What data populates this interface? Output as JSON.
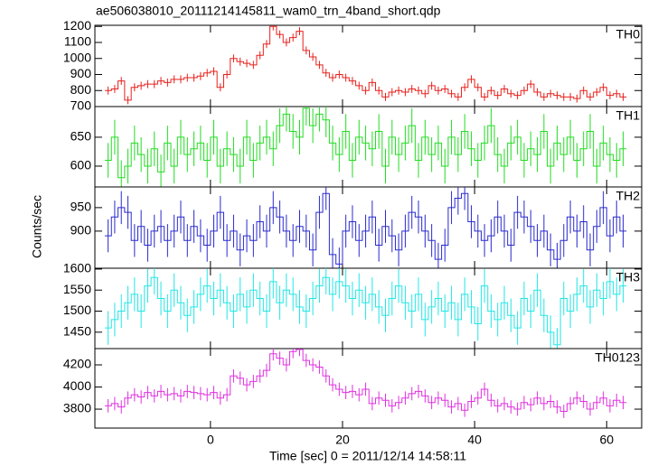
{
  "chart_data": {
    "type": "step",
    "title": "ae506038010_20111214145811_wam0_trn_4band_short.qdp",
    "xlabel": "Time [sec] 0 = 2011/12/14 14:58:11",
    "ylabel": "Counts/sec",
    "x": [
      -15.5,
      -14.5,
      -13.5,
      -12.5,
      -11.5,
      -10.5,
      -9.5,
      -8.5,
      -7.5,
      -6.5,
      -5.5,
      -4.5,
      -3.5,
      -2.5,
      -1.5,
      -0.5,
      0.5,
      1.5,
      2.5,
      3.5,
      4.5,
      5.5,
      6.5,
      7.5,
      8.5,
      9.5,
      10.5,
      11.5,
      12.5,
      13.5,
      14.5,
      15.5,
      16.5,
      17.5,
      18.5,
      19.5,
      20.5,
      21.5,
      22.5,
      23.5,
      24.5,
      25.5,
      26.5,
      27.5,
      28.5,
      29.5,
      30.5,
      31.5,
      32.5,
      33.5,
      34.5,
      35.5,
      36.5,
      37.5,
      38.5,
      39.5,
      40.5,
      41.5,
      42.5,
      43.5,
      44.5,
      45.5,
      46.5,
      47.5,
      48.5,
      49.5,
      50.5,
      51.5,
      52.5,
      53.5,
      54.5,
      55.5,
      56.5,
      57.5,
      58.5,
      59.5,
      60.5,
      61.5,
      62.5
    ],
    "bin_width": 1,
    "xlim": [
      -17.5,
      65.3
    ],
    "xticks": [
      0,
      20,
      40,
      60
    ],
    "panels": [
      {
        "name": "TH0",
        "color": "#e8201c",
        "error": 25,
        "ylim": [
          700,
          1207
        ],
        "yticks": [
          700,
          800,
          900,
          1000,
          1100,
          1200
        ],
        "values": [
          800,
          810,
          860,
          740,
          820,
          830,
          840,
          840,
          860,
          850,
          870,
          870,
          880,
          880,
          890,
          910,
          920,
          820,
          900,
          1000,
          980,
          970,
          960,
          1020,
          1090,
          1200,
          1150,
          1100,
          1130,
          1170,
          1050,
          1010,
          960,
          910,
          880,
          900,
          880,
          860,
          830,
          800,
          850,
          800,
          760,
          790,
          800,
          790,
          810,
          800,
          780,
          830,
          800,
          810,
          780,
          760,
          820,
          870,
          820,
          760,
          800,
          770,
          810,
          780,
          770,
          800,
          840,
          790,
          760,
          780,
          770,
          760,
          760,
          750,
          800,
          760,
          790,
          820,
          770,
          780,
          760
        ]
      },
      {
        "name": "TH1",
        "color": "#22dd22",
        "error": 30,
        "ylim": [
          564,
          703
        ],
        "yticks": [
          600,
          650
        ],
        "values": [
          610,
          650,
          580,
          600,
          640,
          620,
          600,
          630,
          590,
          640,
          600,
          650,
          620,
          630,
          640,
          610,
          650,
          600,
          630,
          620,
          600,
          650,
          610,
          640,
          650,
          630,
          670,
          690,
          660,
          650,
          700,
          670,
          690,
          680,
          640,
          620,
          660,
          610,
          650,
          640,
          630,
          660,
          600,
          650,
          620,
          640,
          670,
          610,
          650,
          620,
          640,
          600,
          650,
          620,
          660,
          630,
          610,
          640,
          670,
          620,
          600,
          640,
          650,
          610,
          630,
          620,
          660,
          600,
          640,
          620,
          650,
          610,
          630,
          660,
          600,
          640,
          620,
          610,
          630
        ]
      },
      {
        "name": "TH2",
        "color": "#2a2ad0",
        "error": 35,
        "ylim": [
          821,
          994
        ],
        "yticks": [
          900,
          950
        ],
        "values": [
          890,
          930,
          950,
          940,
          880,
          910,
          870,
          900,
          910,
          880,
          900,
          930,
          880,
          910,
          890,
          870,
          900,
          940,
          880,
          900,
          860,
          890,
          880,
          920,
          900,
          950,
          930,
          900,
          880,
          910,
          900,
          860,
          940,
          980,
          850,
          830,
          900,
          920,
          880,
          900,
          930,
          870,
          910,
          890,
          860,
          900,
          940,
          930,
          900,
          880,
          840,
          870,
          950,
          970,
          980,
          920,
          900,
          880,
          890,
          930,
          900,
          870,
          940,
          930,
          910,
          880,
          900,
          860,
          840,
          880,
          930,
          900,
          920,
          860,
          910,
          950,
          890,
          930,
          900
        ]
      },
      {
        "name": "TH3",
        "color": "#22e6e6",
        "error": 40,
        "ylim": [
          1411,
          1602
        ],
        "yticks": [
          1450,
          1500,
          1550,
          1600
        ],
        "values": [
          1460,
          1480,
          1500,
          1520,
          1540,
          1500,
          1560,
          1580,
          1530,
          1500,
          1550,
          1520,
          1490,
          1510,
          1540,
          1560,
          1530,
          1550,
          1520,
          1500,
          1540,
          1510,
          1550,
          1530,
          1500,
          1570,
          1520,
          1550,
          1540,
          1510,
          1500,
          1530,
          1560,
          1580,
          1540,
          1570,
          1560,
          1530,
          1550,
          1520,
          1540,
          1510,
          1490,
          1530,
          1560,
          1520,
          1500,
          1540,
          1480,
          1510,
          1530,
          1500,
          1520,
          1480,
          1540,
          1510,
          1470,
          1560,
          1500,
          1480,
          1520,
          1490,
          1460,
          1530,
          1500,
          1550,
          1490,
          1450,
          1420,
          1530,
          1500,
          1540,
          1560,
          1510,
          1550,
          1530,
          1570,
          1540,
          1560
        ]
      },
      {
        "name": "TH0123",
        "color": "#e030e0",
        "error": 60,
        "ylim": [
          3629,
          4347
        ],
        "yticks": [
          3800,
          4000,
          4200
        ],
        "values": [
          3830,
          3850,
          3820,
          3900,
          3930,
          3910,
          3950,
          3920,
          3960,
          3930,
          3940,
          3920,
          3960,
          3950,
          3940,
          3930,
          3950,
          3900,
          3930,
          4100,
          4080,
          4020,
          4050,
          4100,
          4150,
          4300,
          4260,
          4200,
          4320,
          4340,
          4240,
          4200,
          4180,
          4100,
          4020,
          3980,
          3950,
          3960,
          3930,
          3980,
          3850,
          3900,
          3880,
          3830,
          3860,
          3900,
          3940,
          3960,
          3920,
          3860,
          3900,
          3880,
          3820,
          3850,
          3790,
          3870,
          3900,
          3980,
          3880,
          3830,
          3850,
          3820,
          3800,
          3860,
          3840,
          3900,
          3850,
          3870,
          3820,
          3780,
          3850,
          3900,
          3870,
          3800,
          3860,
          3900,
          3830,
          3880,
          3860
        ]
      }
    ]
  }
}
